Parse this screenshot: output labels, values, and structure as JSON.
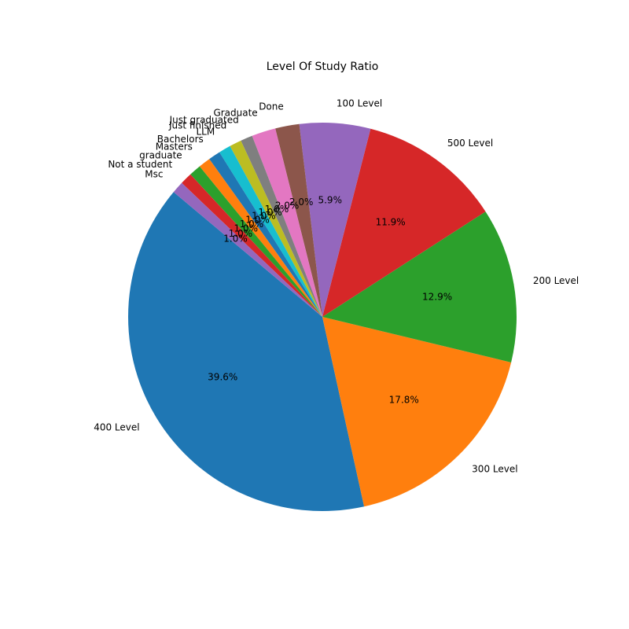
{
  "chart_data": {
    "type": "pie",
    "title": "Level Of Study Ratio",
    "start_angle_deg": 140,
    "direction": "counterclockwise",
    "slices": [
      {
        "label": "400 Level",
        "value": 39.6,
        "pct_label": "39.6%",
        "color": "#1f77b4"
      },
      {
        "label": "300 Level",
        "value": 17.8,
        "pct_label": "17.8%",
        "color": "#ff7f0e"
      },
      {
        "label": "200 Level",
        "value": 12.9,
        "pct_label": "12.9%",
        "color": "#2ca02c"
      },
      {
        "label": "500 Level",
        "value": 11.9,
        "pct_label": "11.9%",
        "color": "#d62728"
      },
      {
        "label": "100 Level",
        "value": 5.9,
        "pct_label": "5.9%",
        "color": "#9467bd"
      },
      {
        "label": "Done",
        "value": 2.0,
        "pct_label": "2.0%",
        "color": "#8c564b"
      },
      {
        "label": "Graduate",
        "value": 2.0,
        "pct_label": "2.0%",
        "color": "#e377c2"
      },
      {
        "label": "Just graduated",
        "value": 1.0,
        "pct_label": "1.0%",
        "color": "#7f7f7f"
      },
      {
        "label": "Just finished",
        "value": 1.0,
        "pct_label": "1.0%",
        "color": "#bcbd22"
      },
      {
        "label": "LLM",
        "value": 1.0,
        "pct_label": "1.0%",
        "color": "#17becf"
      },
      {
        "label": "Bachelors",
        "value": 1.0,
        "pct_label": "1.0%",
        "color": "#1f77b4"
      },
      {
        "label": "Masters",
        "value": 1.0,
        "pct_label": "1.0%",
        "color": "#ff7f0e"
      },
      {
        "label": "graduate",
        "value": 1.0,
        "pct_label": "1.0%",
        "color": "#2ca02c"
      },
      {
        "label": "Not a student",
        "value": 1.0,
        "pct_label": "1.0%",
        "color": "#d62728"
      },
      {
        "label": "Msc",
        "value": 1.0,
        "pct_label": "1.0%",
        "color": "#9467bd"
      }
    ]
  }
}
